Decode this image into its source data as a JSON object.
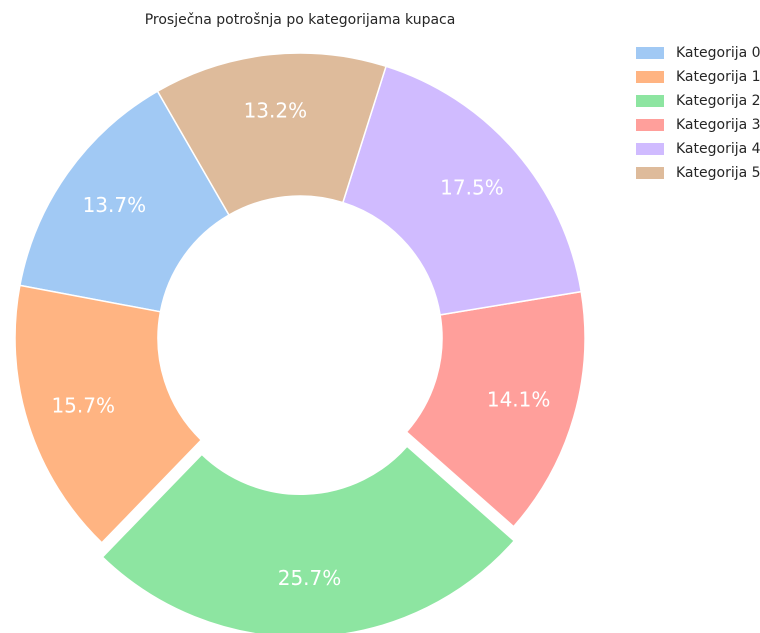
{
  "chart_data": {
    "type": "donut",
    "title": "Prosječna potrošnja po kategorijama kupaca",
    "categories": [
      "Kategorija 0",
      "Kategorija 1",
      "Kategorija 2",
      "Kategorija 3",
      "Kategorija 4",
      "Kategorija 5"
    ],
    "values": [
      13.7,
      15.7,
      25.7,
      14.1,
      17.5,
      13.2
    ],
    "value_labels": [
      "13.7%",
      "15.7%",
      "25.7%",
      "14.1%",
      "17.5%",
      "13.2%"
    ],
    "colors": [
      "#a1c9f4",
      "#ffb482",
      "#8de5a1",
      "#ff9f9b",
      "#d0bbff",
      "#debb9b"
    ],
    "explode": [
      0,
      0,
      0.05,
      0,
      0,
      0
    ],
    "legend": "upper right"
  }
}
